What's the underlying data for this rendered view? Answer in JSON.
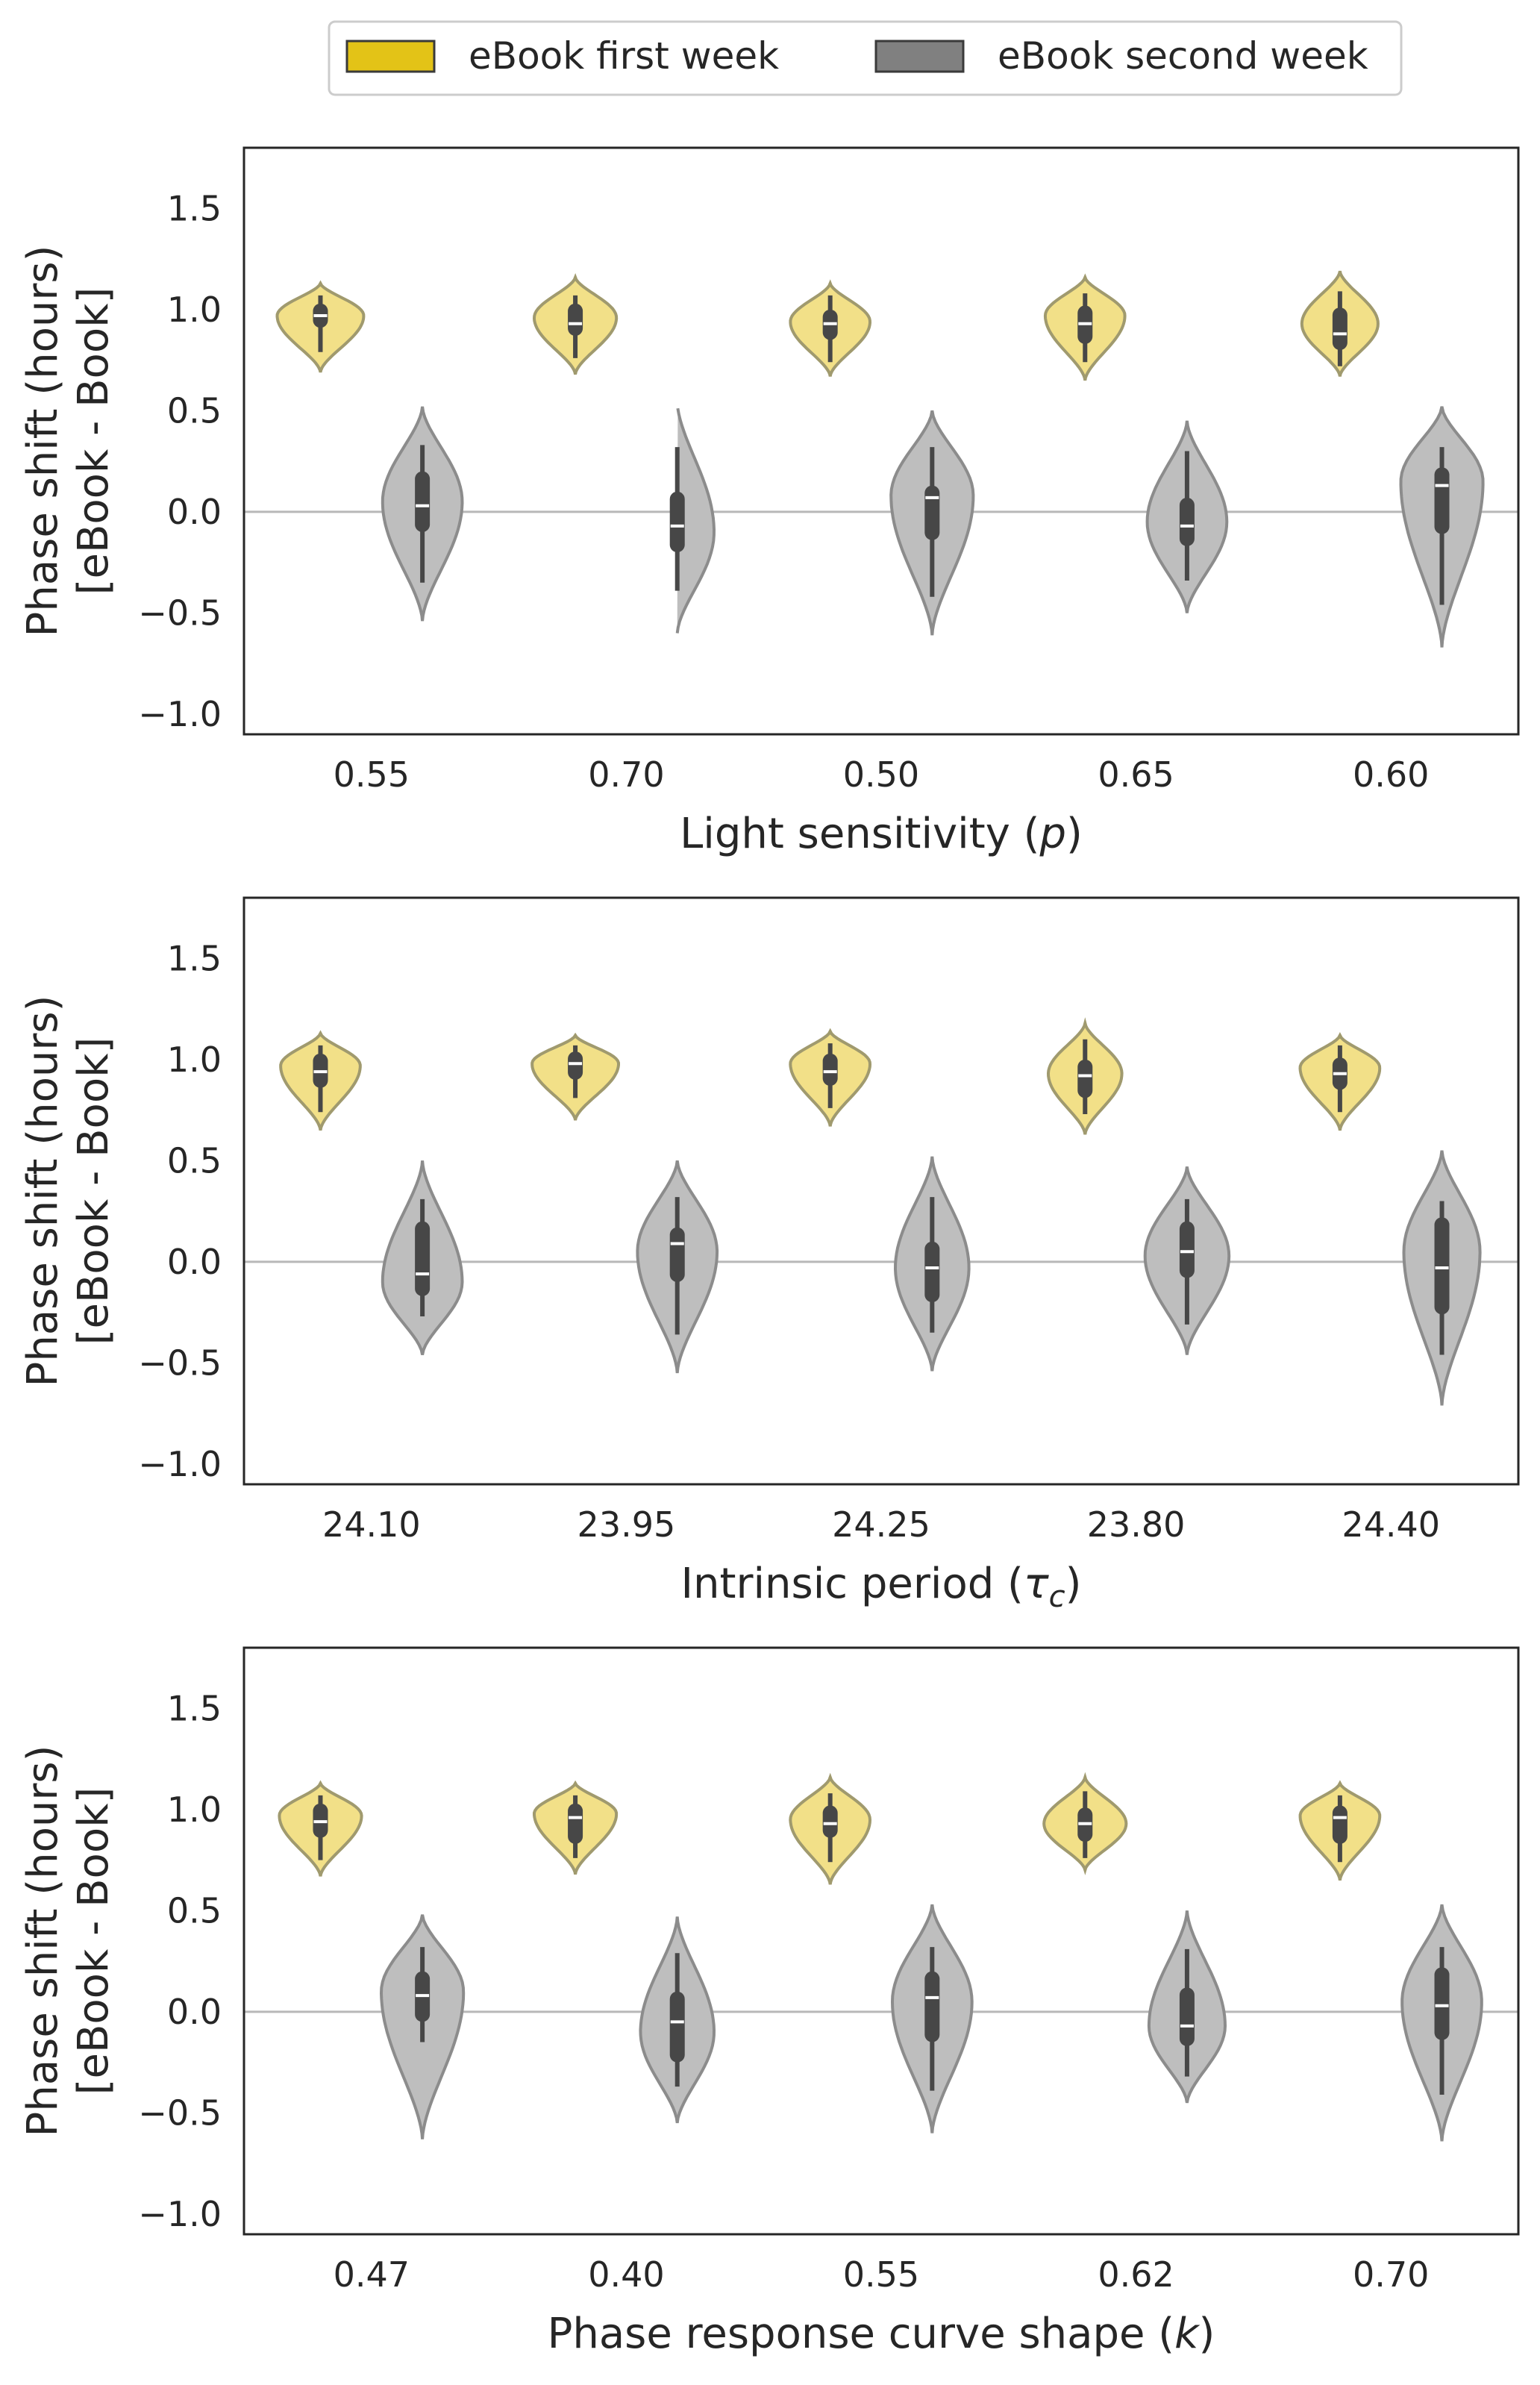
{
  "legend": {
    "entries": [
      {
        "label": "eBook first week",
        "color": "#E3C317",
        "fill": "#F2E088"
      },
      {
        "label": "eBook second week",
        "color": "#808080",
        "fill": "#BEBEBE"
      }
    ]
  },
  "chart_data": [
    {
      "type": "violin",
      "ylabel_line1": "Phase shift (hours)",
      "ylabel_line2": "[eBook - Book]",
      "xlabel_main": "Light sensitivity (",
      "xlabel_symbol": "p",
      "xlabel_sub": "",
      "xlabel_close": ")",
      "categories": [
        "0.55",
        "0.70",
        "0.50",
        "0.65",
        "0.60"
      ],
      "ylim": [
        -1.1,
        1.8
      ],
      "yticks": [
        -1.0,
        -0.5,
        0.0,
        0.5,
        1.0,
        1.5
      ],
      "ytick_labels": [
        "−1.0",
        "−0.5",
        "0.0",
        "0.5",
        "1.0",
        "1.5"
      ],
      "reference_line": 0.0,
      "grid": false,
      "series": [
        {
          "name": "eBook first week",
          "color": "#F2E088",
          "edge": "#A09A6E",
          "values": [
            {
              "min": 0.69,
              "max": 1.13,
              "median": 0.97,
              "q1": 0.91,
              "q3": 1.03,
              "wlo": 0.79,
              "whi": 1.07,
              "widest": 0.97,
              "width": 1.0
            },
            {
              "min": 0.68,
              "max": 1.16,
              "median": 0.93,
              "q1": 0.87,
              "q3": 1.03,
              "wlo": 0.76,
              "whi": 1.07,
              "widest": 0.96,
              "width": 0.95
            },
            {
              "min": 0.67,
              "max": 1.13,
              "median": 0.93,
              "q1": 0.85,
              "q3": 1.0,
              "wlo": 0.74,
              "whi": 1.07,
              "widest": 0.94,
              "width": 0.92
            },
            {
              "min": 0.65,
              "max": 1.16,
              "median": 0.93,
              "q1": 0.83,
              "q3": 1.02,
              "wlo": 0.74,
              "whi": 1.08,
              "widest": 0.97,
              "width": 0.92
            },
            {
              "min": 0.67,
              "max": 1.19,
              "median": 0.88,
              "q1": 0.8,
              "q3": 1.01,
              "wlo": 0.72,
              "whi": 1.09,
              "widest": 0.93,
              "width": 0.88
            }
          ]
        },
        {
          "name": "eBook second week",
          "color": "#BEBEBE",
          "edge": "#8C8C8C",
          "values": [
            {
              "min": -0.54,
              "max": 0.52,
              "median": 0.03,
              "q1": -0.1,
              "q3": 0.2,
              "wlo": -0.35,
              "whi": 0.33,
              "widest": 0.05,
              "width": 0.92
            },
            {
              "min": -0.6,
              "max": 0.54,
              "median": -0.07,
              "q1": -0.2,
              "q3": 0.1,
              "wlo": -0.39,
              "whi": 0.32,
              "widest": -0.1,
              "width": 0.85
            },
            {
              "min": -0.61,
              "max": 0.5,
              "median": 0.07,
              "q1": -0.14,
              "q3": 0.13,
              "wlo": -0.42,
              "whi": 0.32,
              "widest": 0.08,
              "width": 0.95
            },
            {
              "min": -0.5,
              "max": 0.45,
              "median": -0.07,
              "q1": -0.17,
              "q3": 0.07,
              "wlo": -0.34,
              "whi": 0.3,
              "widest": -0.05,
              "width": 0.92
            },
            {
              "min": -0.67,
              "max": 0.52,
              "median": 0.13,
              "q1": -0.11,
              "q3": 0.22,
              "wlo": -0.46,
              "whi": 0.32,
              "widest": 0.15,
              "width": 0.95
            }
          ]
        }
      ]
    },
    {
      "type": "violin",
      "ylabel_line1": "Phase shift (hours)",
      "ylabel_line2": "[eBook - Book]",
      "xlabel_main": "Intrinsic period (",
      "xlabel_symbol": "τ",
      "xlabel_sub": "c",
      "xlabel_close": ")",
      "categories": [
        "24.10",
        "23.95",
        "24.25",
        "23.80",
        "24.40"
      ],
      "ylim": [
        -1.1,
        1.8
      ],
      "yticks": [
        -1.0,
        -0.5,
        0.0,
        0.5,
        1.0,
        1.5
      ],
      "ytick_labels": [
        "−1.0",
        "−0.5",
        "0.0",
        "0.5",
        "1.0",
        "1.5"
      ],
      "reference_line": 0.0,
      "grid": false,
      "series": [
        {
          "name": "eBook first week",
          "color": "#F2E088",
          "edge": "#A09A6E",
          "values": [
            {
              "min": 0.65,
              "max": 1.13,
              "median": 0.94,
              "q1": 0.86,
              "q3": 1.03,
              "wlo": 0.74,
              "whi": 1.07,
              "widest": 0.97,
              "width": 0.92
            },
            {
              "min": 0.7,
              "max": 1.12,
              "median": 0.98,
              "q1": 0.9,
              "q3": 1.04,
              "wlo": 0.81,
              "whi": 1.07,
              "widest": 0.98,
              "width": 1.0
            },
            {
              "min": 0.67,
              "max": 1.14,
              "median": 0.94,
              "q1": 0.87,
              "q3": 1.03,
              "wlo": 0.76,
              "whi": 1.08,
              "widest": 0.98,
              "width": 0.92
            },
            {
              "min": 0.63,
              "max": 1.18,
              "median": 0.92,
              "q1": 0.81,
              "q3": 1.0,
              "wlo": 0.73,
              "whi": 1.1,
              "widest": 0.93,
              "width": 0.85
            },
            {
              "min": 0.65,
              "max": 1.12,
              "median": 0.93,
              "q1": 0.85,
              "q3": 1.01,
              "wlo": 0.74,
              "whi": 1.07,
              "widest": 0.96,
              "width": 0.92
            }
          ]
        },
        {
          "name": "eBook second week",
          "color": "#BEBEBE",
          "edge": "#8C8C8C",
          "values": [
            {
              "min": -0.46,
              "max": 0.5,
              "median": -0.06,
              "q1": -0.17,
              "q3": 0.2,
              "wlo": -0.27,
              "whi": 0.31,
              "widest": -0.1,
              "width": 0.92
            },
            {
              "min": -0.55,
              "max": 0.5,
              "median": 0.09,
              "q1": -0.1,
              "q3": 0.17,
              "wlo": -0.36,
              "whi": 0.32,
              "widest": 0.05,
              "width": 0.92
            },
            {
              "min": -0.54,
              "max": 0.52,
              "median": -0.03,
              "q1": -0.2,
              "q3": 0.1,
              "wlo": -0.35,
              "whi": 0.32,
              "widest": -0.03,
              "width": 0.85
            },
            {
              "min": -0.46,
              "max": 0.47,
              "median": 0.05,
              "q1": -0.08,
              "q3": 0.2,
              "wlo": -0.31,
              "whi": 0.31,
              "widest": 0.03,
              "width": 0.97
            },
            {
              "min": -0.71,
              "max": 0.55,
              "median": -0.03,
              "q1": -0.26,
              "q3": 0.22,
              "wlo": -0.46,
              "whi": 0.3,
              "widest": 0.05,
              "width": 0.88
            }
          ]
        }
      ]
    },
    {
      "type": "violin",
      "ylabel_line1": "Phase shift (hours)",
      "ylabel_line2": "[eBook - Book]",
      "xlabel_main": "Phase response curve shape (",
      "xlabel_symbol": "k",
      "xlabel_sub": "",
      "xlabel_close": ")",
      "categories": [
        "0.47",
        "0.40",
        "0.55",
        "0.62",
        "0.70"
      ],
      "ylim": [
        -1.1,
        1.8
      ],
      "yticks": [
        -1.0,
        -0.5,
        0.0,
        0.5,
        1.0,
        1.5
      ],
      "ytick_labels": [
        "−1.0",
        "−0.5",
        "0.0",
        "0.5",
        "1.0",
        "1.5"
      ],
      "reference_line": 0.0,
      "grid": false,
      "series": [
        {
          "name": "eBook first week",
          "color": "#F2E088",
          "edge": "#A09A6E",
          "values": [
            {
              "min": 0.67,
              "max": 1.13,
              "median": 0.94,
              "q1": 0.86,
              "q3": 1.03,
              "wlo": 0.75,
              "whi": 1.07,
              "widest": 0.97,
              "width": 0.95
            },
            {
              "min": 0.68,
              "max": 1.13,
              "median": 0.96,
              "q1": 0.83,
              "q3": 1.03,
              "wlo": 0.76,
              "whi": 1.07,
              "widest": 0.98,
              "width": 0.95
            },
            {
              "min": 0.63,
              "max": 1.16,
              "median": 0.93,
              "q1": 0.86,
              "q3": 1.02,
              "wlo": 0.74,
              "whi": 1.08,
              "widest": 0.95,
              "width": 0.92
            },
            {
              "min": 0.7,
              "max": 1.16,
              "median": 0.93,
              "q1": 0.84,
              "q3": 1.01,
              "wlo": 0.76,
              "whi": 1.09,
              "widest": 0.93,
              "width": 0.95
            },
            {
              "min": 0.65,
              "max": 1.13,
              "median": 0.96,
              "q1": 0.83,
              "q3": 1.02,
              "wlo": 0.74,
              "whi": 1.07,
              "widest": 0.97,
              "width": 0.92
            }
          ]
        },
        {
          "name": "eBook second week",
          "color": "#BEBEBE",
          "edge": "#8C8C8C",
          "values": [
            {
              "min": -0.63,
              "max": 0.48,
              "median": 0.08,
              "q1": -0.05,
              "q3": 0.2,
              "wlo": -0.15,
              "whi": 0.32,
              "widest": 0.1,
              "width": 0.95
            },
            {
              "min": -0.55,
              "max": 0.47,
              "median": -0.05,
              "q1": -0.25,
              "q3": 0.1,
              "wlo": -0.37,
              "whi": 0.29,
              "widest": -0.1,
              "width": 0.85
            },
            {
              "min": -0.6,
              "max": 0.53,
              "median": 0.07,
              "q1": -0.15,
              "q3": 0.2,
              "wlo": -0.39,
              "whi": 0.32,
              "widest": 0.05,
              "width": 0.92
            },
            {
              "min": -0.45,
              "max": 0.5,
              "median": -0.07,
              "q1": -0.17,
              "q3": 0.12,
              "wlo": -0.32,
              "whi": 0.31,
              "widest": -0.07,
              "width": 0.88
            },
            {
              "min": -0.64,
              "max": 0.53,
              "median": 0.03,
              "q1": -0.14,
              "q3": 0.22,
              "wlo": -0.41,
              "whi": 0.32,
              "widest": 0.05,
              "width": 0.92
            }
          ]
        }
      ]
    }
  ]
}
